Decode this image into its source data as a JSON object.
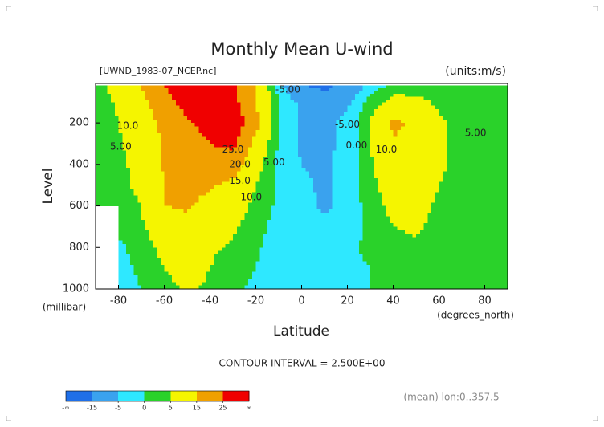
{
  "chart_data": {
    "type": "contour",
    "title": "Monthly Mean U-wind",
    "subtitle_left": "[UWND_1983-07_NCEP.nc]",
    "subtitle_right": "(units:m/s)",
    "y_label": "Level",
    "y_units": "(millibar)",
    "x_label": "Latitude",
    "x_units": "(degrees_north)",
    "footnote": "CONTOUR INTERVAL = 2.500E+00",
    "averaging_note": "(mean) lon:0..357.5",
    "xlim": [
      -90,
      90
    ],
    "ylim": [
      1000,
      10
    ],
    "xticks": [
      -80,
      -60,
      -40,
      -20,
      0,
      20,
      40,
      60,
      80
    ],
    "yticks": [
      200,
      400,
      600,
      800,
      1000
    ],
    "x": [
      -90,
      -80,
      -70,
      -60,
      -50,
      -40,
      -30,
      -20,
      -10,
      0,
      10,
      20,
      30,
      40,
      50,
      60,
      70,
      80,
      90
    ],
    "y": [
      20,
      100,
      200,
      300,
      400,
      500,
      600,
      700,
      800,
      900,
      1000
    ],
    "z": [
      [
        3,
        8,
        15,
        25,
        32,
        32,
        28,
        15,
        -3,
        -15,
        -18,
        -12,
        -3,
        1,
        2,
        3,
        2,
        2,
        1
      ],
      [
        2,
        6,
        12,
        22,
        28,
        30,
        28,
        15,
        0,
        -6,
        -8,
        -6,
        2,
        8,
        7,
        4,
        2,
        1,
        1
      ],
      [
        1,
        5,
        10,
        18,
        24,
        28,
        32,
        18,
        -1,
        -6,
        -6,
        -4,
        5,
        17,
        13,
        6,
        3,
        1,
        0
      ],
      [
        1,
        4,
        9,
        16,
        21,
        25,
        27,
        12,
        -1,
        -6,
        -6,
        -4,
        5,
        14,
        12,
        6,
        3,
        1,
        0
      ],
      [
        1,
        3,
        8,
        16,
        20,
        21,
        20,
        8,
        -1,
        -5,
        -6,
        -3,
        4,
        11,
        10,
        6,
        3,
        1,
        0
      ],
      [
        1,
        3,
        7,
        15,
        18,
        16,
        13,
        5,
        -1,
        -4,
        -6,
        -3,
        3,
        9,
        9,
        5,
        2,
        1,
        0
      ],
      [
        0,
        2,
        5,
        15,
        16,
        12,
        9,
        3,
        -1,
        -3,
        -6,
        -3,
        2,
        7,
        7,
        4,
        2,
        1,
        0
      ],
      [
        null,
        1,
        4,
        10,
        13,
        8,
        6,
        2,
        -2,
        -3,
        -4,
        -2,
        1,
        5,
        6,
        3,
        2,
        1,
        0
      ],
      [
        null,
        -1,
        2,
        7,
        10,
        6,
        4,
        1,
        -3,
        -3,
        -2,
        -1,
        1,
        3,
        4,
        2,
        1,
        0,
        0
      ],
      [
        null,
        -2,
        1,
        5,
        8,
        5,
        2,
        0,
        -4,
        -2,
        -1,
        -1,
        0,
        2,
        3,
        1,
        1,
        0,
        0
      ],
      [
        null,
        -2,
        0,
        3,
        6,
        4,
        1,
        -1,
        -5,
        -3,
        -1,
        -1,
        0,
        1,
        2,
        1,
        0,
        0,
        0
      ]
    ],
    "colorbar": {
      "levels": [
        -15,
        -5,
        0,
        5,
        15,
        25
      ],
      "under_label": "-∞",
      "over_label": "∞",
      "colors": [
        "#1f6fe8",
        "#3aa2ee",
        "#2ee8ff",
        "#2ad22a",
        "#f5f500",
        "#f0a000",
        "#f00000"
      ]
    },
    "contour_labels": [
      {
        "text": "10.0",
        "x": -76,
        "y": 215
      },
      {
        "text": "5.00",
        "x": -79,
        "y": 315
      },
      {
        "text": "25.0",
        "x": -30,
        "y": 330
      },
      {
        "text": "20.0",
        "x": -27,
        "y": 400
      },
      {
        "text": "15.0",
        "x": -27,
        "y": 480
      },
      {
        "text": "10.0",
        "x": -22,
        "y": 560
      },
      {
        "text": "5.00",
        "x": -12,
        "y": 390
      },
      {
        "text": "-5.00",
        "x": -6,
        "y": 40
      },
      {
        "text": "-5.00",
        "x": 20,
        "y": 210
      },
      {
        "text": "0.00",
        "x": 24,
        "y": 310
      },
      {
        "text": "10.0",
        "x": 37,
        "y": 330
      },
      {
        "text": "5.00",
        "x": 76,
        "y": 250
      }
    ]
  }
}
